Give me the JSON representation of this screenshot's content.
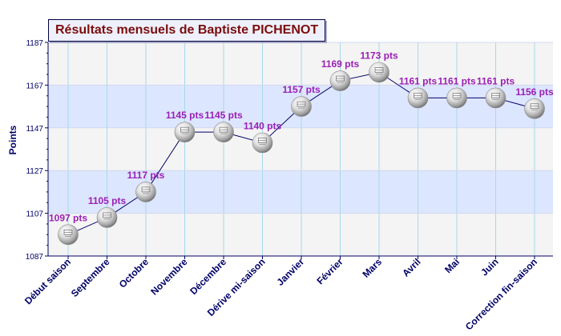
{
  "chart_data": {
    "type": "line",
    "title": "Résultats mensuels de Baptiste PICHENOT",
    "ylabel": "Points",
    "xlabel": "",
    "categories": [
      "Début saison",
      "Septembre",
      "Octobre",
      "Novembre",
      "Décembre",
      "Dérive mi-saison",
      "Janvier",
      "Février",
      "Mars",
      "Avril",
      "Mai",
      "Juin",
      "Correction fin-saison"
    ],
    "values": [
      1097,
      1105,
      1117,
      1145,
      1145,
      1140,
      1157,
      1169,
      1173,
      1161,
      1161,
      1161,
      1156
    ],
    "data_labels": [
      "1097 pts",
      "1105 pts",
      "1117 pts",
      "1145 pts",
      "1145 pts",
      "1140 pts",
      "1157 pts",
      "1169 pts",
      "1173 pts",
      "1161 pts",
      "1161 pts",
      "1161 pts",
      "1156 pts"
    ],
    "ylim": [
      1087,
      1187
    ],
    "y_ticks": [
      "1087",
      "1107",
      "1127",
      "1147",
      "1167",
      "1187"
    ],
    "grid": true,
    "colors": {
      "line": "#000066",
      "label": "#9a1fb5",
      "title": "#7a0d0d",
      "axis_label": "#000066",
      "tick_label": "#000066",
      "band_blue": "#dde6ff",
      "band_gray": "#f4f4f4",
      "grid": "#a8d8ea"
    }
  }
}
